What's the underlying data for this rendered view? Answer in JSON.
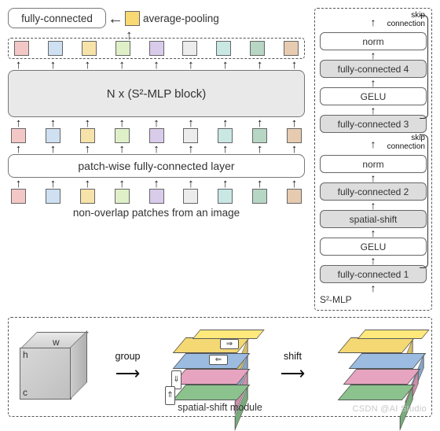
{
  "left": {
    "fc_top": "fully-connected",
    "avg_pool": "average-pooling",
    "big_block": "N x (S²-MLP block)",
    "patch_fc": "patch-wise fully-connected layer",
    "caption": "non-overlap patches from an image",
    "avg_patch_color": "#f9d974",
    "patch_colors": [
      "#f4c7c7",
      "#cee0f2",
      "#f6e3a9",
      "#dff0c8",
      "#d9cceb",
      "#ececec",
      "#c9e8e4",
      "#b7d6c4",
      "#e7cbb0"
    ]
  },
  "right": {
    "title": "S²-MLP",
    "skip_label": "skip\nconnection",
    "blocks_upper": [
      {
        "label": "norm",
        "bg": "white"
      },
      {
        "label": "fully-connected 4",
        "bg": "grey"
      },
      {
        "label": "GELU",
        "bg": "white"
      },
      {
        "label": "fully-connected 3",
        "bg": "grey"
      }
    ],
    "blocks_lower": [
      {
        "label": "norm",
        "bg": "white"
      },
      {
        "label": "fully-connected 2",
        "bg": "grey"
      },
      {
        "label": "spatial-shift",
        "bg": "grey"
      },
      {
        "label": "GELU",
        "bg": "white"
      },
      {
        "label": "fully-connected 1",
        "bg": "grey"
      }
    ]
  },
  "bottom": {
    "dims": {
      "h": "h",
      "w": "w",
      "c": "c"
    },
    "group_label": "group",
    "shift_label": "shift",
    "module_label": "spatial-shift module",
    "slab_colors": [
      "#f4d873",
      "#9bbbe0",
      "#e7a4c0",
      "#8bc28d"
    ],
    "shifted_offsets": [
      0,
      14,
      7,
      0
    ]
  },
  "watermark": "CSDN @AI Studio"
}
